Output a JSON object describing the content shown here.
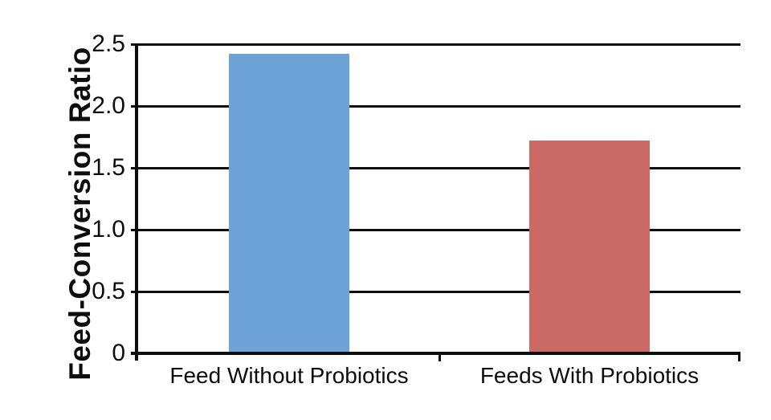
{
  "chart_data": {
    "type": "bar",
    "categories": [
      "Feed Without Probiotics",
      "Feeds With Probiotics"
    ],
    "values": [
      2.42,
      1.72
    ],
    "bar_colors": [
      "#6CA2D8",
      "#C96A66"
    ],
    "ylabel": "Feed-Conversion Ratio",
    "yticks": [
      0,
      0.5,
      1.0,
      1.5,
      2.0,
      2.5
    ],
    "ytick_labels": [
      "0",
      "0.5",
      "1.0",
      "1.5",
      "2.0",
      "2.5"
    ],
    "ylim": [
      0,
      2.5
    ],
    "grid": "horizontal",
    "legend": "none",
    "axis_color": "#0d0d0d",
    "background": "#ffffff"
  }
}
